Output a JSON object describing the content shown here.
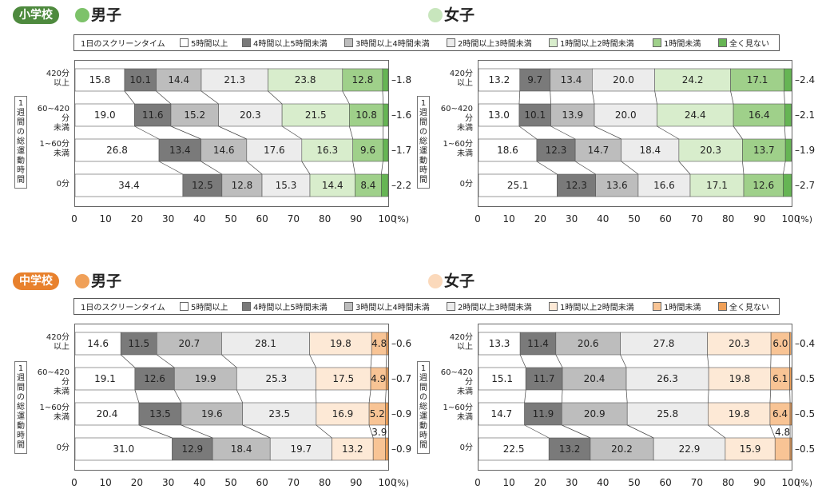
{
  "legend": {
    "title": "1日のスクリーンタイム",
    "items": [
      "5時間以上",
      "4時間以上5時間未満",
      "3時間以上4時間未満",
      "2時間以上3時間未満",
      "1時間以上2時間未満",
      "1時間未満",
      "全く見ない"
    ]
  },
  "yaxis_label": "1週間の総運動時間",
  "x_ticks": [
    "0",
    "10",
    "20",
    "30",
    "40",
    "50",
    "60",
    "70",
    "80",
    "90",
    "100"
  ],
  "x_unit": "(%)",
  "sections": [
    {
      "badge": "小学校",
      "color": "#4e8a3e"
    },
    {
      "badge": "中学校",
      "color": "#e8812d"
    }
  ],
  "colors": {
    "elementary": [
      "#ffffff",
      "#7a7a7a",
      "#bdbdbd",
      "#ececec",
      "#d8edcc",
      "#9fd08a",
      "#66b554"
    ],
    "junior": [
      "#ffffff",
      "#7a7a7a",
      "#bdbdbd",
      "#ececec",
      "#fde9d6",
      "#f8c495",
      "#f0a058"
    ],
    "elementary_dot": "#7dc26a",
    "elementary_dot_light": "#c8e6bd",
    "junior_dot": "#f0a058",
    "junior_dot_light": "#fbd9bb"
  },
  "chart_data": [
    {
      "type": "bar",
      "stacked": "horizontal-100",
      "title": "男子",
      "section": "小学校",
      "categories": [
        [
          "420分",
          "以上"
        ],
        [
          "60~420分",
          "未満"
        ],
        [
          "1~60分",
          "未満"
        ],
        [
          "0分"
        ]
      ],
      "values": [
        [
          15.8,
          10.1,
          14.4,
          21.3,
          23.8,
          12.8,
          1.8
        ],
        [
          19.0,
          11.6,
          15.2,
          20.3,
          21.5,
          10.8,
          1.6
        ],
        [
          26.8,
          13.4,
          14.6,
          17.6,
          16.3,
          9.6,
          1.7
        ],
        [
          34.4,
          12.5,
          12.8,
          15.3,
          14.4,
          8.4,
          2.2
        ]
      ],
      "labels": [
        [
          "15.8",
          "10.1",
          "14.4",
          "21.3",
          "23.8",
          "12.8",
          "1.8"
        ],
        [
          "19.0",
          "11.6",
          "15.2",
          "20.3",
          "21.5",
          "10.8",
          "1.6"
        ],
        [
          "26.8",
          "13.4",
          "14.6",
          "17.6",
          "16.3",
          "9.6",
          "1.7"
        ],
        [
          "34.4",
          "12.5",
          "12.8",
          "15.3",
          "14.4",
          "8.4",
          "2.2"
        ]
      ],
      "xlim": [
        0,
        100
      ]
    },
    {
      "type": "bar",
      "stacked": "horizontal-100",
      "title": "女子",
      "section": "小学校",
      "categories": [
        [
          "420分",
          "以上"
        ],
        [
          "60~420分",
          "未満"
        ],
        [
          "1~60分",
          "未満"
        ],
        [
          "0分"
        ]
      ],
      "values": [
        [
          13.2,
          9.7,
          13.4,
          20.0,
          24.2,
          17.1,
          2.4
        ],
        [
          13.0,
          10.1,
          13.9,
          20.0,
          24.4,
          16.4,
          2.1
        ],
        [
          18.6,
          12.3,
          14.7,
          18.4,
          20.3,
          13.7,
          1.9
        ],
        [
          25.1,
          12.3,
          13.6,
          16.6,
          17.1,
          12.6,
          2.7
        ]
      ],
      "labels": [
        [
          "13.2",
          "9.7",
          "13.4",
          "20.0",
          "24.2",
          "17.1",
          "2.4"
        ],
        [
          "13.0",
          "10.1",
          "13.9",
          "20.0",
          "24.4",
          "16.4",
          "2.1"
        ],
        [
          "18.6",
          "12.3",
          "14.7",
          "18.4",
          "20.3",
          "13.7",
          "1.9"
        ],
        [
          "25.1",
          "12.3",
          "13.6",
          "16.6",
          "17.1",
          "12.6",
          "2.7"
        ]
      ],
      "xlim": [
        0,
        100
      ]
    },
    {
      "type": "bar",
      "stacked": "horizontal-100",
      "title": "男子",
      "section": "中学校",
      "categories": [
        [
          "420分",
          "以上"
        ],
        [
          "60~420分",
          "未満"
        ],
        [
          "1~60分",
          "未満"
        ],
        [
          "0分"
        ]
      ],
      "values": [
        [
          14.6,
          11.5,
          20.7,
          28.1,
          19.8,
          4.8,
          0.6
        ],
        [
          19.1,
          12.6,
          19.9,
          25.3,
          17.5,
          4.9,
          0.7
        ],
        [
          20.4,
          13.5,
          19.6,
          23.5,
          16.9,
          5.2,
          0.9
        ],
        [
          31.0,
          12.9,
          18.4,
          19.7,
          13.2,
          3.9,
          0.9
        ]
      ],
      "labels": [
        [
          "14.6",
          "11.5",
          "20.7",
          "28.1",
          "19.8",
          "4.8",
          "0.6"
        ],
        [
          "19.1",
          "12.6",
          "19.9",
          "25.3",
          "17.5",
          "4.9",
          "0.7"
        ],
        [
          "20.4",
          "13.5",
          "19.6",
          "23.5",
          "16.9",
          "5.2",
          "0.9"
        ],
        [
          "31.0",
          "12.9",
          "18.4",
          "19.7",
          "13.2",
          "3.9",
          "0.9"
        ]
      ],
      "xlim": [
        0,
        100
      ]
    },
    {
      "type": "bar",
      "stacked": "horizontal-100",
      "title": "女子",
      "section": "中学校",
      "categories": [
        [
          "420分",
          "以上"
        ],
        [
          "60~420分",
          "未満"
        ],
        [
          "1~60分",
          "未満"
        ],
        [
          "0分"
        ]
      ],
      "values": [
        [
          13.3,
          11.4,
          20.6,
          27.8,
          20.3,
          6.0,
          0.4
        ],
        [
          15.1,
          11.7,
          20.4,
          26.3,
          19.8,
          6.1,
          0.5
        ],
        [
          14.7,
          11.9,
          20.9,
          25.8,
          19.8,
          6.4,
          0.5
        ],
        [
          22.5,
          13.2,
          20.2,
          22.9,
          15.9,
          4.8,
          0.5
        ]
      ],
      "labels": [
        [
          "13.3",
          "11.4",
          "20.6",
          "27.8",
          "20.3",
          "6.0",
          "0.4"
        ],
        [
          "15.1",
          "11.7",
          "20.4",
          "26.3",
          "19.8",
          "6.1",
          "0.5"
        ],
        [
          "14.7",
          "11.9",
          "20.9",
          "25.8",
          "19.8",
          "6.4",
          "0.5"
        ],
        [
          "22.5",
          "13.2",
          "20.2",
          "22.9",
          "15.9",
          "4.8",
          "0.5"
        ]
      ],
      "xlim": [
        0,
        100
      ]
    }
  ]
}
